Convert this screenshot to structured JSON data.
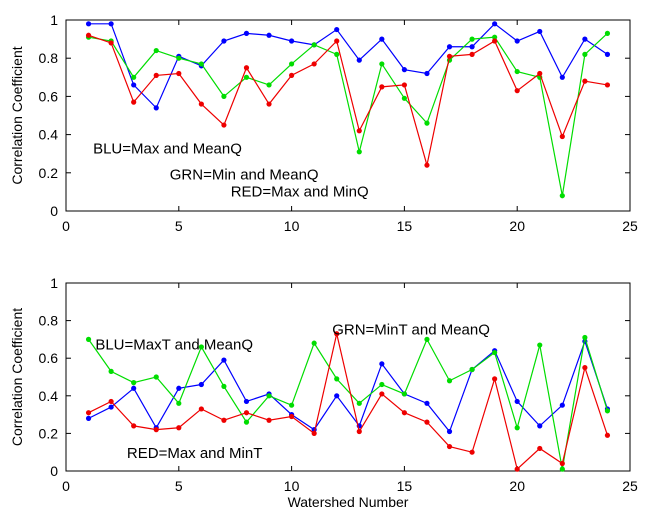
{
  "chart_data": [
    {
      "type": "line",
      "ylabel": "Correlation Coefficient",
      "xlabel": "",
      "xlim": [
        0,
        25
      ],
      "ylim": [
        0,
        1
      ],
      "xticks": [
        0,
        5,
        10,
        15,
        20,
        25
      ],
      "yticks": [
        0,
        0.2,
        0.4,
        0.6,
        0.8,
        1
      ],
      "xticklabels": [
        "0",
        "5",
        "10",
        "15",
        "20",
        "25"
      ],
      "yticklabels": [
        "0",
        "0.2",
        "0.4",
        "0.6",
        "0.8",
        "1"
      ],
      "grid": false,
      "x": [
        1,
        2,
        3,
        4,
        5,
        6,
        7,
        8,
        9,
        10,
        11,
        12,
        13,
        14,
        15,
        16,
        17,
        18,
        19,
        20,
        21,
        22,
        23,
        24
      ],
      "series": [
        {
          "color": "#0000ff",
          "values": [
            0.98,
            0.98,
            0.66,
            0.54,
            0.81,
            0.76,
            0.89,
            0.93,
            0.92,
            0.89,
            0.87,
            0.95,
            0.79,
            0.9,
            0.74,
            0.72,
            0.86,
            0.86,
            0.98,
            0.89,
            0.94,
            0.7,
            0.9,
            0.82
          ]
        },
        {
          "color": "#00dd00",
          "values": [
            0.91,
            0.89,
            0.7,
            0.84,
            0.8,
            0.77,
            0.6,
            0.7,
            0.66,
            0.77,
            0.87,
            0.82,
            0.31,
            0.77,
            0.59,
            0.46,
            0.79,
            0.9,
            0.91,
            0.73,
            0.7,
            0.08,
            0.82,
            0.93
          ]
        },
        {
          "color": "#ee0000",
          "values": [
            0.92,
            0.88,
            0.57,
            0.71,
            0.72,
            0.56,
            0.45,
            0.75,
            0.56,
            0.71,
            0.77,
            0.89,
            0.42,
            0.65,
            0.66,
            0.24,
            0.81,
            0.82,
            0.89,
            0.63,
            0.72,
            0.39,
            0.68,
            0.66
          ]
        }
      ],
      "annotations": [
        {
          "text": "BLU=Max and MeanQ",
          "x": 1.2,
          "y": 0.3
        },
        {
          "text": "GRN=Min and MeanQ",
          "x": 4.6,
          "y": 0.165
        },
        {
          "text": "RED=Max and MinQ",
          "x": 7.3,
          "y": 0.075
        }
      ]
    },
    {
      "type": "line",
      "ylabel": "Correlation Coefficient",
      "xlabel": "Watershed Number",
      "xlim": [
        0,
        25
      ],
      "ylim": [
        0,
        1
      ],
      "xticks": [
        0,
        5,
        10,
        15,
        20,
        25
      ],
      "yticks": [
        0,
        0.2,
        0.4,
        0.6,
        0.8,
        1
      ],
      "xticklabels": [
        "0",
        "5",
        "10",
        "15",
        "20",
        "25"
      ],
      "yticklabels": [
        "0",
        "0.2",
        "0.4",
        "0.6",
        "0.8",
        "1"
      ],
      "grid": false,
      "x": [
        1,
        2,
        3,
        4,
        5,
        6,
        7,
        8,
        9,
        10,
        11,
        12,
        13,
        14,
        15,
        16,
        17,
        18,
        19,
        20,
        21,
        22,
        23,
        24
      ],
      "series": [
        {
          "color": "#0000ff",
          "values": [
            0.28,
            0.34,
            0.44,
            0.23,
            0.44,
            0.46,
            0.59,
            0.37,
            0.41,
            0.3,
            0.22,
            0.4,
            0.24,
            0.57,
            0.41,
            0.36,
            0.21,
            0.54,
            0.64,
            0.37,
            0.24,
            0.35,
            0.69,
            0.33
          ]
        },
        {
          "color": "#00dd00",
          "values": [
            0.7,
            0.53,
            0.47,
            0.5,
            0.36,
            0.66,
            0.45,
            0.26,
            0.4,
            0.35,
            0.68,
            0.49,
            0.36,
            0.46,
            0.41,
            0.7,
            0.48,
            0.54,
            0.63,
            0.23,
            0.67,
            0.01,
            0.71,
            0.32
          ]
        },
        {
          "color": "#ee0000",
          "values": [
            0.31,
            0.37,
            0.24,
            0.22,
            0.23,
            0.33,
            0.27,
            0.31,
            0.27,
            0.29,
            0.2,
            0.73,
            0.21,
            0.41,
            0.31,
            0.26,
            0.13,
            0.1,
            0.49,
            0.01,
            0.12,
            0.04,
            0.55,
            0.19
          ]
        }
      ],
      "annotations": [
        {
          "text": "BLU=MaxT and MeanQ",
          "x": 1.3,
          "y": 0.645
        },
        {
          "text": "GRN=MinT and MeanQ",
          "x": 11.8,
          "y": 0.725
        },
        {
          "text": "RED=Max and MinT",
          "x": 2.7,
          "y": 0.07
        }
      ]
    }
  ]
}
